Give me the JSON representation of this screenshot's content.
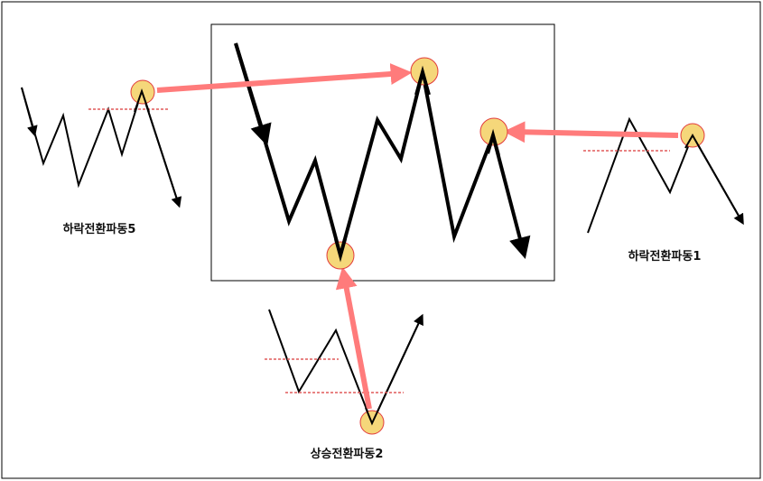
{
  "labels": {
    "left": "하락전환파동5",
    "right": "하락전환파동1",
    "bottom": "상승전환파동2"
  },
  "colors": {
    "wave": "#000000",
    "arrow": "#ff7b7b",
    "circle_fill": "#f5d77a",
    "circle_stroke": "#e23b3b",
    "dashed": "#e05a5a"
  }
}
